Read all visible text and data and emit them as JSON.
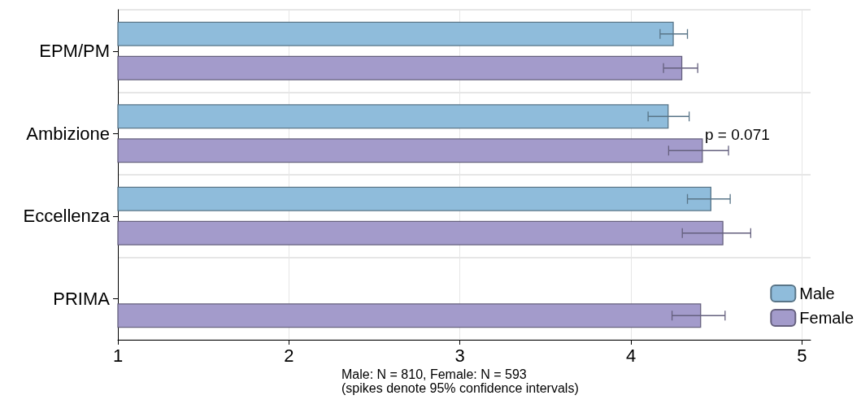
{
  "chart_data": {
    "type": "bar",
    "orientation": "horizontal",
    "categories": [
      "EPM/PM",
      "Ambizione",
      "Eccellenza",
      "PRIMA"
    ],
    "series": [
      {
        "name": "Male",
        "color": "#8fbcdb",
        "values": [
          4.25,
          4.22,
          4.47,
          null
        ],
        "errors": [
          [
            4.17,
            4.33
          ],
          [
            4.1,
            4.34
          ],
          [
            4.33,
            4.58
          ],
          null
        ]
      },
      {
        "name": "Female",
        "color": "#a39bcb",
        "values": [
          4.3,
          4.42,
          4.54,
          4.41
        ],
        "errors": [
          [
            4.19,
            4.39
          ],
          [
            4.22,
            4.57
          ],
          [
            4.3,
            4.7
          ],
          [
            4.24,
            4.55
          ]
        ]
      }
    ],
    "xlim": [
      1,
      5.05
    ],
    "xticks": [
      1,
      2,
      3,
      4,
      5
    ],
    "grid": true,
    "legend": "bottom right",
    "annotations": [
      "p = 0.071",
      "Male: N = 810, Female: N = 593",
      "(spikes denote 95% confidence intervals)"
    ]
  }
}
